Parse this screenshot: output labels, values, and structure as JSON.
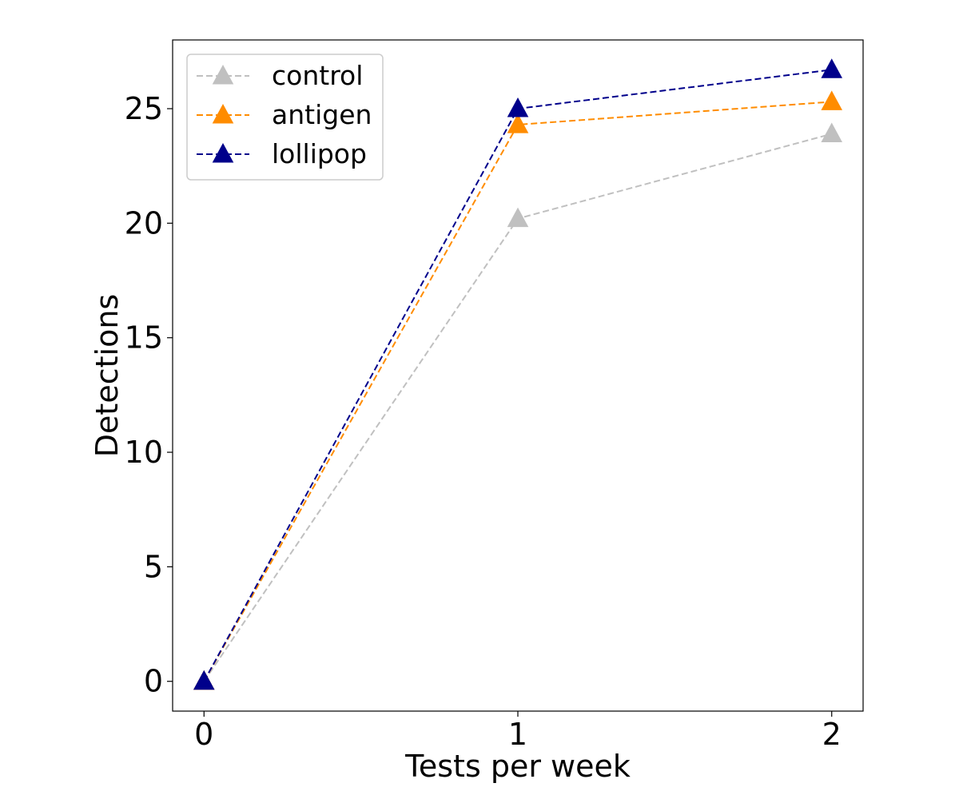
{
  "chart_data": {
    "type": "line",
    "title": "",
    "xlabel": "Tests per week",
    "ylabel": "Detections",
    "x": [
      0,
      1,
      2
    ],
    "xticks": [
      0,
      1,
      2
    ],
    "yticks": [
      0,
      5,
      10,
      15,
      20,
      25
    ],
    "xlim": [
      -0.1,
      2.1
    ],
    "ylim": [
      -1.3,
      28.0
    ],
    "grid": false,
    "legend_position": "top-left",
    "line_style": "dashed",
    "marker": "triangle-up",
    "series": [
      {
        "name": "control",
        "color": "#c0c0c0",
        "values": [
          0,
          20.2,
          23.9
        ]
      },
      {
        "name": "antigen",
        "color": "#ff8c00",
        "values": [
          0,
          24.3,
          25.3
        ]
      },
      {
        "name": "lollipop",
        "color": "#00008b",
        "values": [
          0,
          25.0,
          26.7
        ]
      }
    ]
  }
}
